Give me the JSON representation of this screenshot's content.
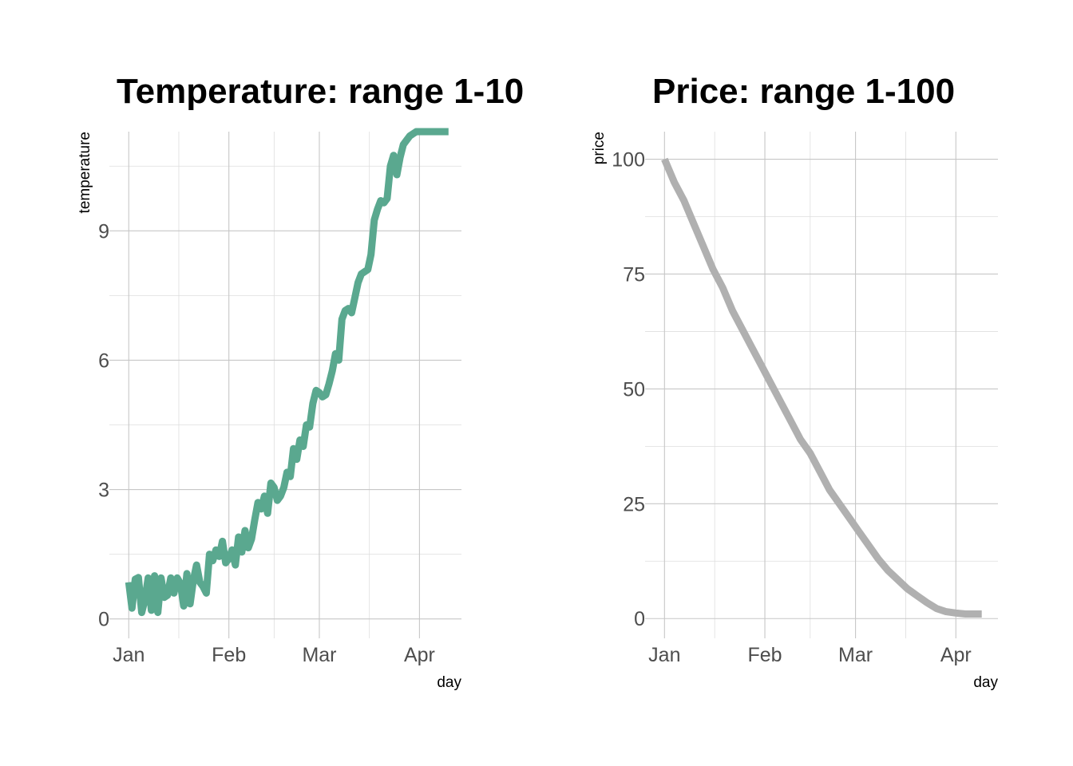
{
  "chart_data": [
    {
      "type": "line",
      "title": "Temperature: range 1-10",
      "xlabel": "day",
      "ylabel": "temperature",
      "x_ticks": [
        "Jan",
        "Feb",
        "Mar",
        "Apr"
      ],
      "x_tick_values": [
        "2018-01-01",
        "2018-02-01",
        "2018-03-01",
        "2018-04-01"
      ],
      "xlim": [
        "2017-12-26",
        "2018-04-14"
      ],
      "y_ticks": [
        0,
        3,
        6,
        9
      ],
      "ylim": [
        -0.45,
        11.3
      ],
      "grid": true,
      "color": "#5aa88f",
      "series": [
        {
          "x": [
            "2018-01-01",
            "2018-01-02",
            "2018-01-03",
            "2018-01-04",
            "2018-01-05",
            "2018-01-06",
            "2018-01-07",
            "2018-01-08",
            "2018-01-09",
            "2018-01-10",
            "2018-01-11",
            "2018-01-12",
            "2018-01-13",
            "2018-01-14",
            "2018-01-15",
            "2018-01-16",
            "2018-01-17",
            "2018-01-18",
            "2018-01-19",
            "2018-01-20",
            "2018-01-21",
            "2018-01-22",
            "2018-01-23",
            "2018-01-24",
            "2018-01-25",
            "2018-01-26",
            "2018-01-27",
            "2018-01-28",
            "2018-01-29",
            "2018-01-30",
            "2018-01-31",
            "2018-02-01",
            "2018-02-02",
            "2018-02-03",
            "2018-02-04",
            "2018-02-05",
            "2018-02-06",
            "2018-02-07",
            "2018-02-08",
            "2018-02-09",
            "2018-02-10",
            "2018-02-11",
            "2018-02-12",
            "2018-02-13",
            "2018-02-14",
            "2018-02-15",
            "2018-02-16",
            "2018-02-17",
            "2018-02-18",
            "2018-02-19",
            "2018-02-20",
            "2018-02-21",
            "2018-02-22",
            "2018-02-23",
            "2018-02-24",
            "2018-02-25",
            "2018-02-26",
            "2018-02-27",
            "2018-02-28",
            "2018-03-01",
            "2018-03-02",
            "2018-03-03",
            "2018-03-04",
            "2018-03-05",
            "2018-03-06",
            "2018-03-07",
            "2018-03-08",
            "2018-03-09",
            "2018-03-10",
            "2018-03-11",
            "2018-03-12",
            "2018-03-13",
            "2018-03-14",
            "2018-03-15",
            "2018-03-16",
            "2018-03-17",
            "2018-03-18",
            "2018-03-19",
            "2018-03-20",
            "2018-03-21",
            "2018-03-22",
            "2018-03-23",
            "2018-03-24",
            "2018-03-25",
            "2018-03-26",
            "2018-03-27",
            "2018-03-28",
            "2018-03-29",
            "2018-03-30",
            "2018-03-31",
            "2018-04-01",
            "2018-04-02",
            "2018-04-03",
            "2018-04-04",
            "2018-04-05",
            "2018-04-06",
            "2018-04-07",
            "2018-04-08",
            "2018-04-09",
            "2018-04-10"
          ],
          "y": [
            0.85,
            0.25,
            0.92,
            0.96,
            0.15,
            0.45,
            0.95,
            0.2,
            1.0,
            0.15,
            0.95,
            0.5,
            0.55,
            0.95,
            0.6,
            0.95,
            0.82,
            0.3,
            1.05,
            0.35,
            0.9,
            1.25,
            0.85,
            0.75,
            0.6,
            1.5,
            1.35,
            1.6,
            1.45,
            1.8,
            1.3,
            1.4,
            1.6,
            1.25,
            1.9,
            1.55,
            2.05,
            1.65,
            1.85,
            2.3,
            2.7,
            2.55,
            2.85,
            2.45,
            3.15,
            3.05,
            2.75,
            2.85,
            3.05,
            3.4,
            3.3,
            3.95,
            3.7,
            4.15,
            4.0,
            4.5,
            4.45,
            5.0,
            5.3,
            5.25,
            5.15,
            5.2,
            5.45,
            5.75,
            6.15,
            6.0,
            6.95,
            7.15,
            7.2,
            7.1,
            7.45,
            7.8,
            8.0,
            8.05,
            8.1,
            8.45,
            9.25,
            9.5,
            9.7,
            9.65,
            9.75,
            10.5,
            10.75,
            10.3,
            10.7,
            11.0,
            11.1,
            11.2,
            11.25,
            11.3,
            11.3,
            11.3,
            11.3,
            11.3,
            11.3,
            11.3,
            11.3,
            11.3,
            11.3,
            11.3
          ]
        }
      ]
    },
    {
      "type": "line",
      "title": "Price: range 1-100",
      "xlabel": "day",
      "ylabel": "price",
      "x_ticks": [
        "Jan",
        "Feb",
        "Mar",
        "Apr"
      ],
      "x_tick_values": [
        "2018-01-01",
        "2018-02-01",
        "2018-03-01",
        "2018-04-01"
      ],
      "xlim": [
        "2017-12-26",
        "2018-04-14"
      ],
      "y_ticks": [
        0,
        25,
        50,
        75,
        100
      ],
      "ylim": [
        -4.3,
        106
      ],
      "grid": true,
      "color": "#b0b0b0",
      "series": [
        {
          "x": [
            "2018-01-01",
            "2018-01-04",
            "2018-01-07",
            "2018-01-10",
            "2018-01-13",
            "2018-01-16",
            "2018-01-19",
            "2018-01-22",
            "2018-01-25",
            "2018-01-28",
            "2018-01-31",
            "2018-02-03",
            "2018-02-06",
            "2018-02-09",
            "2018-02-12",
            "2018-02-15",
            "2018-02-18",
            "2018-02-21",
            "2018-02-24",
            "2018-02-27",
            "2018-03-02",
            "2018-03-05",
            "2018-03-08",
            "2018-03-11",
            "2018-03-14",
            "2018-03-17",
            "2018-03-20",
            "2018-03-23",
            "2018-03-26",
            "2018-03-29",
            "2018-04-01",
            "2018-04-04",
            "2018-04-07",
            "2018-04-09"
          ],
          "y": [
            100,
            95,
            91,
            86,
            81,
            76,
            72,
            67,
            63,
            59,
            55,
            51,
            47,
            43,
            39,
            36,
            32,
            28,
            25,
            22,
            19,
            16,
            13,
            10.5,
            8.5,
            6.5,
            5,
            3.5,
            2.2,
            1.5,
            1.2,
            1.0,
            1.0,
            1.0
          ]
        }
      ]
    }
  ]
}
